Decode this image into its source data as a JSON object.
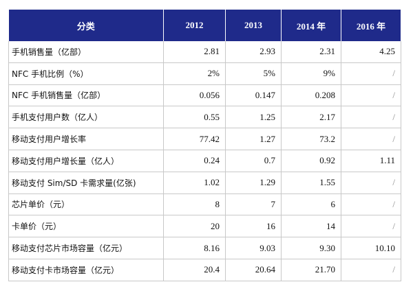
{
  "table": {
    "header": [
      "分类",
      "2012",
      "2013",
      "2014 年",
      "2016 年"
    ],
    "rows": [
      [
        "手机销售量（亿部）",
        "2.81",
        "2.93",
        "2.31",
        "4.25"
      ],
      [
        "NFC 手机比例（%）",
        "2%",
        "5%",
        "9%",
        "/"
      ],
      [
        "NFC 手机销售量（亿部）",
        "0.056",
        "0.147",
        "0.208",
        "/"
      ],
      [
        "手机支付用户数（亿人）",
        "0.55",
        "1.25",
        "2.17",
        "/"
      ],
      [
        "移动支付用户增长率",
        "77.42",
        "1.27",
        "73.2",
        "/"
      ],
      [
        "移动支付用户增长量（亿人）",
        "0.24",
        "0.7",
        "0.92",
        "1.11"
      ],
      [
        "移动支付 Sim/SD 卡需求量(亿张)",
        "1.02",
        "1.29",
        "1.55",
        "/"
      ],
      [
        "芯片单价（元）",
        "8",
        "7",
        "6",
        "/"
      ],
      [
        "卡单价（元）",
        "20",
        "16",
        "14",
        "/"
      ],
      [
        "移动支付芯片市场容量（亿元）",
        "8.16",
        "9.03",
        "9.30",
        "10.10"
      ],
      [
        "移动支付卡市场容量（亿元）",
        "20.4",
        "20.64",
        "21.70",
        "/"
      ]
    ]
  }
}
